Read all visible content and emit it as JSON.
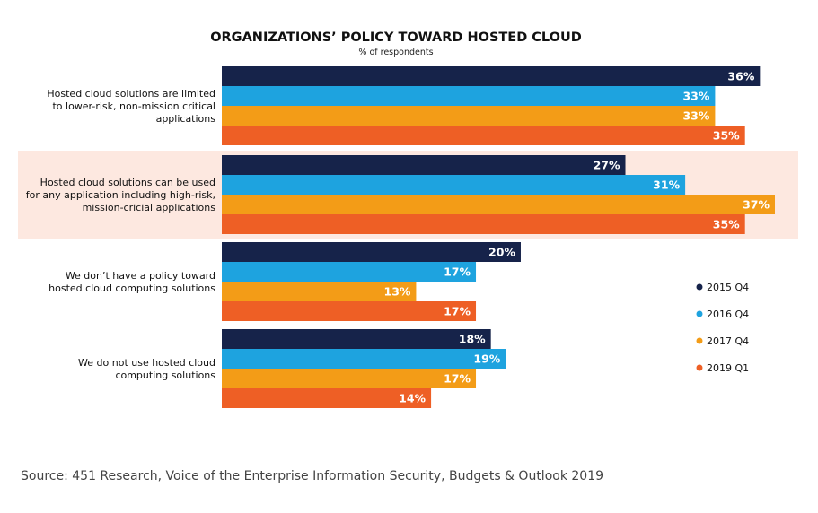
{
  "chart_data": {
    "type": "bar",
    "orientation": "horizontal",
    "title": "ORGANIZATIONS’ POLICY TOWARD HOSTED CLOUD",
    "subtitle": "% of respondents",
    "source": "Source: 451 Research, Voice of the Enterprise Information Security, Budgets & Outlook 2019",
    "categories": [
      [
        "Hosted cloud solutions are limited",
        "to lower-risk, non-mission critical",
        "applications"
      ],
      [
        "Hosted cloud solutions can be used",
        "for any application including high-risk,",
        "mission-cricial applications"
      ],
      [
        "We don’t have a policy toward",
        "hosted cloud computing solutions"
      ],
      [
        "We do not use hosted cloud",
        "computing solutions"
      ]
    ],
    "highlighted_category": 1,
    "highlight_color": "#fde8e0",
    "series": [
      {
        "name": "2015 Q4",
        "color": "#16234a",
        "values": [
          36,
          27,
          20,
          18
        ]
      },
      {
        "name": "2016 Q4",
        "color": "#1ea3df",
        "values": [
          33,
          31,
          17,
          19
        ]
      },
      {
        "name": "2017 Q4",
        "color": "#f39c17",
        "values": [
          33,
          37,
          13,
          17
        ]
      },
      {
        "name": "2019 Q1",
        "color": "#ee5f25",
        "values": [
          35,
          35,
          17,
          14
        ]
      }
    ],
    "value_suffix": "%",
    "xlim": [
      0,
      37
    ],
    "grid": false,
    "legend_position": "right"
  }
}
